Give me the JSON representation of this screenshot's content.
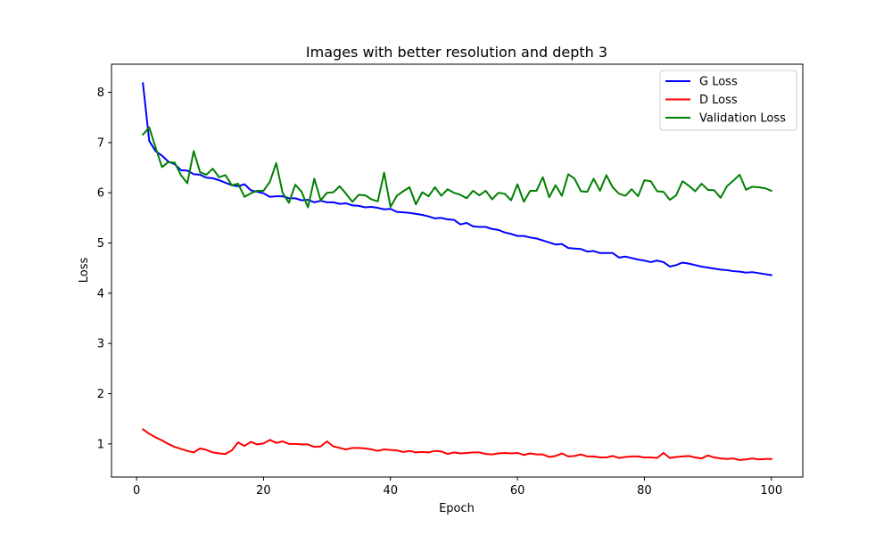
{
  "chart_data": {
    "type": "line",
    "title": "Images with better resolution and depth 3",
    "xlabel": "Epoch",
    "ylabel": "Loss",
    "xlim": [
      -3.95,
      104.95
    ],
    "ylim": [
      0.34,
      8.56
    ],
    "xticks": [
      0,
      20,
      40,
      60,
      80,
      100
    ],
    "yticks": [
      1,
      2,
      3,
      4,
      5,
      6,
      7,
      8
    ],
    "grid": false,
    "legend_position": "top-right",
    "x": [
      1,
      2,
      3,
      4,
      5,
      6,
      7,
      8,
      9,
      10,
      11,
      12,
      13,
      14,
      15,
      16,
      17,
      18,
      19,
      20,
      21,
      22,
      23,
      24,
      25,
      26,
      27,
      28,
      29,
      30,
      31,
      32,
      33,
      34,
      35,
      36,
      37,
      38,
      39,
      40,
      41,
      42,
      43,
      44,
      45,
      46,
      47,
      48,
      49,
      50,
      51,
      52,
      53,
      54,
      55,
      56,
      57,
      58,
      59,
      60,
      61,
      62,
      63,
      64,
      65,
      66,
      67,
      68,
      69,
      70,
      71,
      72,
      73,
      74,
      75,
      76,
      77,
      78,
      79,
      80,
      81,
      82,
      83,
      84,
      85,
      86,
      87,
      88,
      89,
      90,
      91,
      92,
      93,
      94,
      95,
      96,
      97,
      98,
      99,
      100
    ],
    "series": [
      {
        "name": "G Loss",
        "color": "#0000ff",
        "values": [
          8.18,
          7.03,
          6.83,
          6.74,
          6.62,
          6.57,
          6.45,
          6.44,
          6.37,
          6.36,
          6.3,
          6.29,
          6.25,
          6.2,
          6.15,
          6.13,
          6.17,
          6.05,
          6.02,
          5.99,
          5.92,
          5.93,
          5.93,
          5.89,
          5.89,
          5.85,
          5.86,
          5.81,
          5.84,
          5.81,
          5.81,
          5.78,
          5.79,
          5.75,
          5.74,
          5.71,
          5.72,
          5.7,
          5.67,
          5.68,
          5.62,
          5.61,
          5.6,
          5.58,
          5.56,
          5.53,
          5.49,
          5.5,
          5.47,
          5.46,
          5.37,
          5.4,
          5.33,
          5.32,
          5.32,
          5.28,
          5.26,
          5.21,
          5.18,
          5.14,
          5.14,
          5.11,
          5.09,
          5.05,
          5.01,
          4.97,
          4.98,
          4.9,
          4.89,
          4.88,
          4.83,
          4.84,
          4.8,
          4.8,
          4.8,
          4.71,
          4.73,
          4.7,
          4.67,
          4.65,
          4.62,
          4.65,
          4.62,
          4.53,
          4.56,
          4.61,
          4.59,
          4.56,
          4.53,
          4.51,
          4.49,
          4.47,
          4.46,
          4.44,
          4.43,
          4.41,
          4.42,
          4.4,
          4.38,
          4.36
        ]
      },
      {
        "name": "D Loss",
        "color": "#ff0000",
        "values": [
          1.29,
          1.2,
          1.13,
          1.07,
          1.0,
          0.94,
          0.9,
          0.86,
          0.83,
          0.91,
          0.88,
          0.83,
          0.81,
          0.8,
          0.87,
          1.03,
          0.96,
          1.04,
          0.99,
          1.01,
          1.08,
          1.02,
          1.05,
          1.0,
          1.0,
          0.99,
          0.99,
          0.94,
          0.95,
          1.05,
          0.95,
          0.92,
          0.89,
          0.92,
          0.92,
          0.91,
          0.89,
          0.86,
          0.89,
          0.88,
          0.87,
          0.84,
          0.86,
          0.83,
          0.84,
          0.83,
          0.86,
          0.85,
          0.8,
          0.83,
          0.81,
          0.82,
          0.83,
          0.83,
          0.8,
          0.79,
          0.81,
          0.82,
          0.81,
          0.82,
          0.78,
          0.81,
          0.79,
          0.79,
          0.74,
          0.76,
          0.81,
          0.75,
          0.76,
          0.79,
          0.75,
          0.75,
          0.73,
          0.73,
          0.76,
          0.72,
          0.74,
          0.75,
          0.75,
          0.73,
          0.73,
          0.72,
          0.82,
          0.72,
          0.74,
          0.75,
          0.76,
          0.73,
          0.71,
          0.77,
          0.73,
          0.71,
          0.7,
          0.71,
          0.68,
          0.69,
          0.71,
          0.69,
          0.7,
          0.7
        ]
      },
      {
        "name": "Validation Loss",
        "color": "#008000",
        "values": [
          7.16,
          7.3,
          6.9,
          6.51,
          6.61,
          6.6,
          6.35,
          6.19,
          6.83,
          6.41,
          6.36,
          6.48,
          6.31,
          6.35,
          6.15,
          6.18,
          5.92,
          5.99,
          6.04,
          6.04,
          6.22,
          6.59,
          6.0,
          5.8,
          6.16,
          6.02,
          5.71,
          6.28,
          5.85,
          6.0,
          6.01,
          6.13,
          5.98,
          5.82,
          5.96,
          5.95,
          5.87,
          5.83,
          6.4,
          5.72,
          5.94,
          6.03,
          6.11,
          5.77,
          6.01,
          5.93,
          6.11,
          5.94,
          6.07,
          6.0,
          5.96,
          5.89,
          6.04,
          5.95,
          6.04,
          5.87,
          6.0,
          5.98,
          5.85,
          6.17,
          5.82,
          6.04,
          6.04,
          6.31,
          5.91,
          6.15,
          5.94,
          6.37,
          6.28,
          6.03,
          6.02,
          6.28,
          6.04,
          6.35,
          6.11,
          5.98,
          5.94,
          6.07,
          5.93,
          6.25,
          6.23,
          6.03,
          6.02,
          5.86,
          5.95,
          6.23,
          6.14,
          6.03,
          6.18,
          6.06,
          6.05,
          5.9,
          6.13,
          6.24,
          6.36,
          6.06,
          6.12,
          6.11,
          6.09,
          6.04
        ]
      }
    ]
  }
}
